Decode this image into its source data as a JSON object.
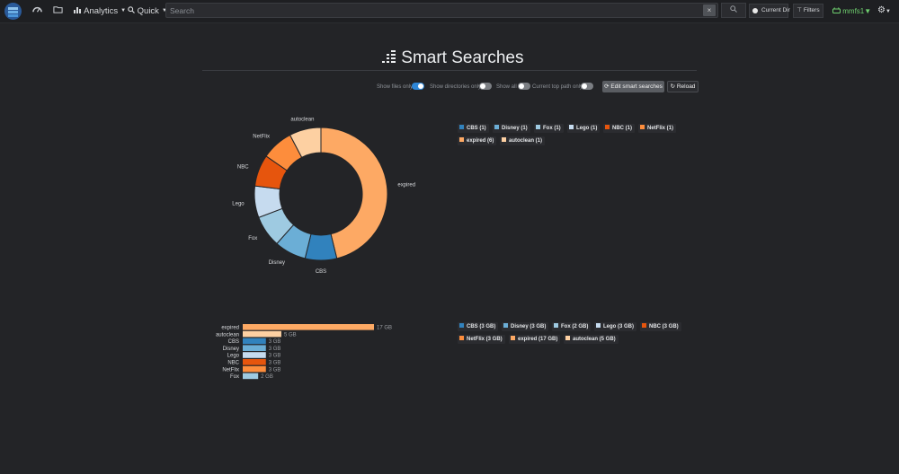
{
  "nav": {
    "analytics_label": "Analytics",
    "quick_label": "Quick",
    "search_placeholder": "Search",
    "search_clear": "×",
    "current_dir_label": "Current Dir",
    "filters_label": "Filters",
    "user_label": "mmfs1"
  },
  "page": {
    "title": "Smart Searches"
  },
  "toolbar": {
    "show_files_only": "Show files only",
    "show_directories_only": "Show directories only",
    "show_all": "Show all",
    "current_top_path_only": "Current top path only",
    "edit_label": "Edit smart searches",
    "reload_label": "Reload"
  },
  "colors": {
    "expired": "#fda964",
    "autoclean": "#fdd0a2",
    "NetFlix": "#fd8d3c",
    "NBC": "#e6550d",
    "Lego": "#c6dbef",
    "Fox": "#9ecae1",
    "Disney": "#6baed6",
    "CBS": "#3182bd"
  },
  "chart_data": [
    {
      "type": "pie",
      "subtype": "donut",
      "metric": "count",
      "slices": [
        {
          "label": "expired",
          "value": 6
        },
        {
          "label": "CBS",
          "value": 1
        },
        {
          "label": "Disney",
          "value": 1
        },
        {
          "label": "Fox",
          "value": 1
        },
        {
          "label": "Lego",
          "value": 1
        },
        {
          "label": "NBC",
          "value": 1
        },
        {
          "label": "NetFlix",
          "value": 1
        },
        {
          "label": "autoclean",
          "value": 1
        }
      ],
      "legend": [
        "CBS (1)",
        "Disney (1)",
        "Fox (1)",
        "Lego (1)",
        "NBC (1)",
        "NetFlix (1)",
        "expired (6)",
        "autoclean (1)"
      ]
    },
    {
      "type": "bar",
      "orientation": "horizontal",
      "metric": "size",
      "unit": "GB",
      "categories": [
        "expired",
        "autoclean",
        "CBS",
        "Disney",
        "Lego",
        "NBC",
        "NetFlix",
        "Fox"
      ],
      "values": [
        17,
        5,
        3,
        3,
        3,
        3,
        3,
        2
      ],
      "value_labels": [
        "17 GB",
        "5 GB",
        "3 GB",
        "3 GB",
        "3 GB",
        "3 GB",
        "3 GB",
        "2 GB"
      ],
      "xlim": [
        0,
        17
      ],
      "legend": [
        "CBS (3 GB)",
        "Disney (3 GB)",
        "Fox (2 GB)",
        "Lego (3 GB)",
        "NBC (3 GB)",
        "NetFlix (3 GB)",
        "expired (17 GB)",
        "autoclean (5 GB)"
      ]
    }
  ]
}
